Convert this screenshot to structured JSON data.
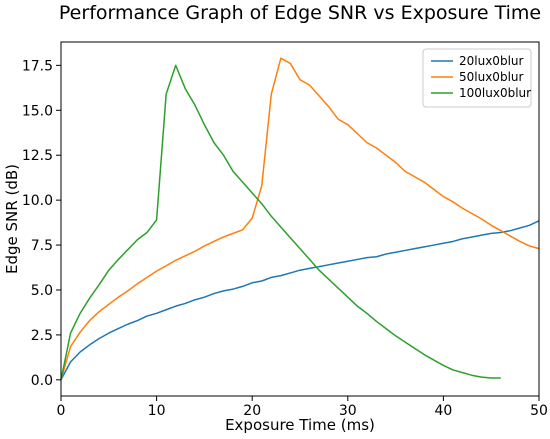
{
  "chart_data": {
    "type": "line",
    "title": "Performance Graph of Edge SNR vs Exposure Time",
    "xlabel": "Exposure Time (ms)",
    "ylabel": "Edge SNR (dB)",
    "xlim": [
      0,
      50
    ],
    "ylim": [
      -0.9,
      18.8
    ],
    "xticks": [
      "0",
      "10",
      "20",
      "30",
      "40",
      "50"
    ],
    "yticks": [
      "0.0",
      "2.5",
      "5.0",
      "7.5",
      "10.0",
      "12.5",
      "15.0",
      "17.5"
    ],
    "grid": false,
    "legend_position": "top-right",
    "series": [
      {
        "name": "20lux0blur",
        "color": "#1f77b4",
        "x": [
          0,
          1,
          2,
          3,
          4,
          5,
          6,
          7,
          8,
          9,
          10,
          11,
          12,
          13,
          14,
          15,
          16,
          17,
          18,
          19,
          20,
          21,
          22,
          23,
          24,
          25,
          26,
          27,
          28,
          29,
          30,
          31,
          32,
          33,
          34,
          35,
          36,
          37,
          38,
          39,
          40,
          41,
          42,
          43,
          44,
          45,
          46,
          47,
          48,
          49,
          50
        ],
        "y": [
          0.0,
          1.0,
          1.55,
          1.95,
          2.3,
          2.6,
          2.85,
          3.1,
          3.3,
          3.55,
          3.7,
          3.9,
          4.1,
          4.25,
          4.45,
          4.6,
          4.8,
          4.95,
          5.05,
          5.2,
          5.4,
          5.5,
          5.7,
          5.8,
          5.95,
          6.1,
          6.2,
          6.3,
          6.4,
          6.5,
          6.6,
          6.7,
          6.8,
          6.85,
          7.0,
          7.1,
          7.2,
          7.3,
          7.4,
          7.5,
          7.6,
          7.7,
          7.85,
          7.95,
          8.05,
          8.15,
          8.2,
          8.3,
          8.45,
          8.6,
          8.85
        ]
      },
      {
        "name": "50lux0blur",
        "color": "#ff7f0e",
        "x": [
          0,
          1,
          2,
          3,
          4,
          5,
          6,
          7,
          8,
          9,
          10,
          11,
          12,
          13,
          14,
          15,
          16,
          17,
          18,
          19,
          20,
          21,
          22,
          23,
          24,
          25,
          26,
          27,
          28,
          29,
          30,
          31,
          32,
          33,
          34,
          35,
          36,
          37,
          38,
          39,
          40,
          41,
          42,
          43,
          44,
          45,
          46,
          47,
          48,
          49,
          50
        ],
        "y": [
          0.0,
          1.85,
          2.65,
          3.3,
          3.8,
          4.2,
          4.6,
          4.95,
          5.35,
          5.7,
          6.05,
          6.35,
          6.65,
          6.9,
          7.15,
          7.45,
          7.7,
          7.95,
          8.15,
          8.35,
          9.0,
          10.8,
          15.9,
          17.9,
          17.6,
          16.7,
          16.4,
          15.8,
          15.2,
          14.5,
          14.2,
          13.7,
          13.2,
          12.9,
          12.5,
          12.1,
          11.6,
          11.3,
          11.0,
          10.6,
          10.2,
          9.9,
          9.55,
          9.25,
          8.95,
          8.6,
          8.3,
          8.0,
          7.7,
          7.45,
          7.3
        ]
      },
      {
        "name": "100lux0blur",
        "color": "#2ca02c",
        "x": [
          0,
          1,
          2,
          3,
          4,
          5,
          6,
          7,
          8,
          9,
          10,
          11,
          12,
          13,
          14,
          15,
          16,
          17,
          18,
          19,
          20,
          21,
          22,
          23,
          24,
          25,
          26,
          27,
          28,
          29,
          30,
          31,
          32,
          33,
          34,
          35,
          36,
          37,
          38,
          39,
          40,
          41,
          42,
          43,
          44,
          45,
          46
        ],
        "y": [
          0.0,
          2.6,
          3.7,
          4.55,
          5.3,
          6.1,
          6.7,
          7.25,
          7.8,
          8.2,
          8.9,
          15.9,
          17.5,
          16.2,
          15.3,
          14.2,
          13.2,
          12.5,
          11.6,
          11.0,
          10.4,
          9.8,
          9.1,
          8.5,
          7.9,
          7.3,
          6.7,
          6.1,
          5.6,
          5.1,
          4.6,
          4.1,
          3.7,
          3.25,
          2.85,
          2.45,
          2.1,
          1.75,
          1.4,
          1.1,
          0.8,
          0.55,
          0.4,
          0.25,
          0.15,
          0.1,
          0.1
        ]
      }
    ]
  }
}
